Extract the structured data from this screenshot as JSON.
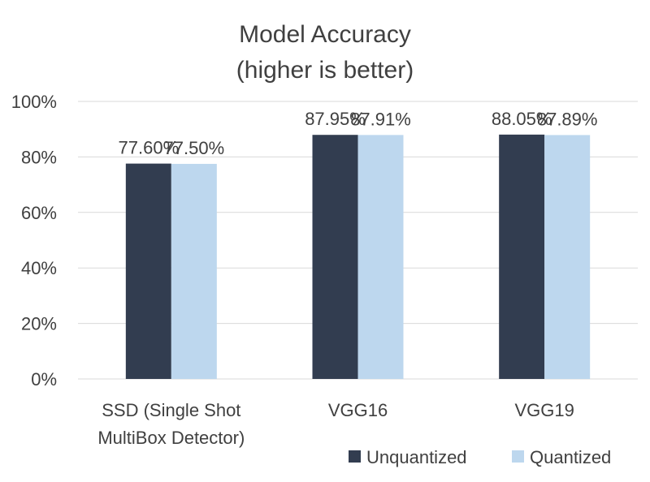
{
  "chart_data": {
    "type": "bar",
    "title": "Model Accuracy",
    "subtitle": "(higher is better)",
    "categories": [
      [
        "SSD (Single Shot",
        "MultiBox Detector)"
      ],
      [
        "VGG16"
      ],
      [
        "VGG19"
      ]
    ],
    "series": [
      {
        "name": "Unquantized",
        "color": "#323d50",
        "values": [
          77.6,
          87.95,
          88.05
        ],
        "labels": [
          "77.60%",
          "87.95%",
          "88.05%"
        ]
      },
      {
        "name": "Quantized",
        "color": "#bdd7ee",
        "values": [
          77.5,
          87.91,
          87.89
        ],
        "labels": [
          "77.50%",
          "87.91%",
          "87.89%"
        ]
      }
    ],
    "ylim": [
      0,
      100
    ],
    "yticks": [
      0,
      20,
      40,
      60,
      80,
      100
    ],
    "ytick_labels": [
      "0%",
      "20%",
      "40%",
      "60%",
      "80%",
      "100%"
    ],
    "xlabel": "",
    "ylabel": "",
    "grid": true,
    "legend_position": "bottom-right",
    "data_labels": true
  }
}
